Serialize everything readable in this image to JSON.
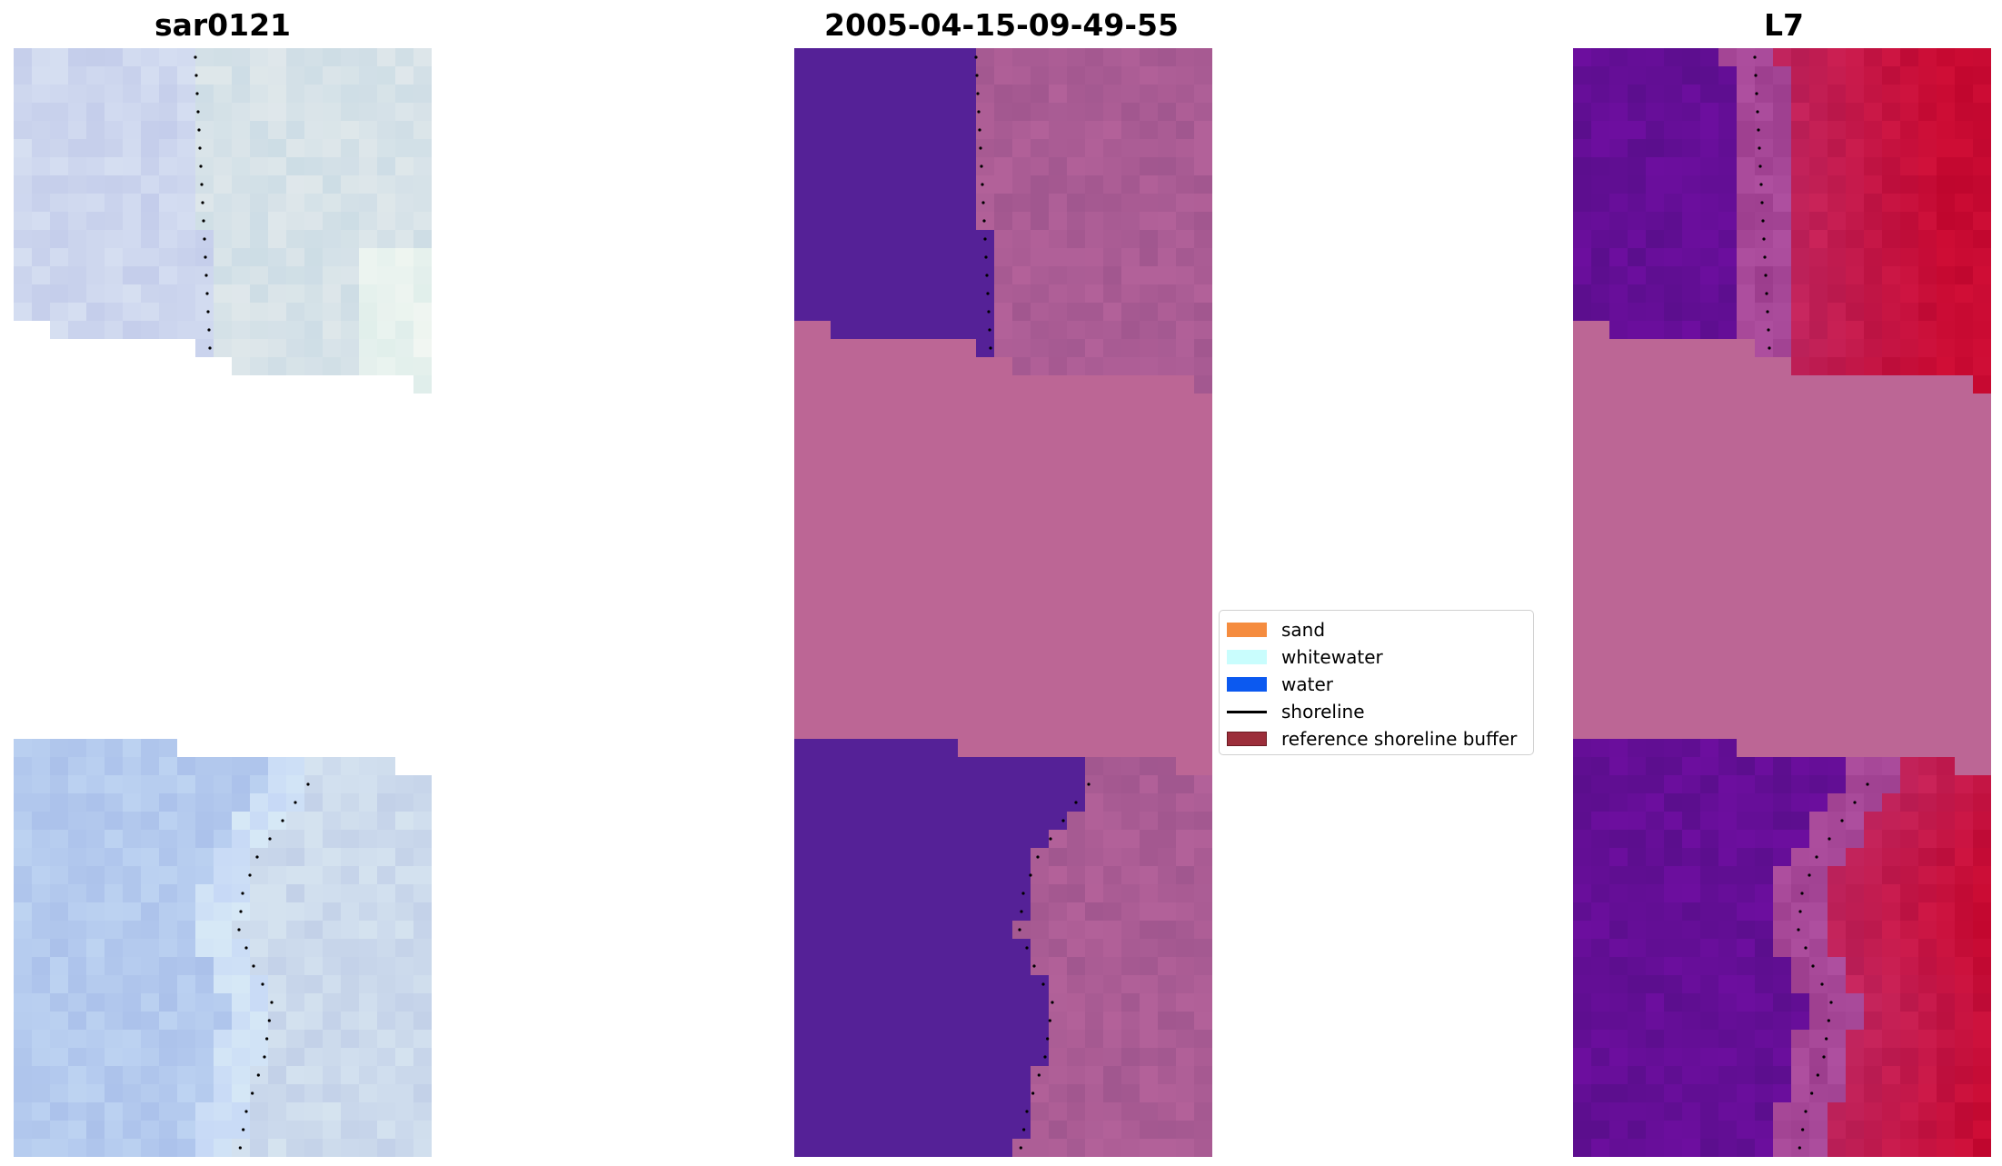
{
  "panels": [
    {
      "title": "sar0121",
      "type": "rgb"
    },
    {
      "title": "2005-04-15-09-49-55",
      "type": "classified"
    },
    {
      "title": "L7",
      "type": "index"
    }
  ],
  "legend": {
    "items": [
      {
        "label": "sand",
        "color": "#f58c3f",
        "kind": "patch"
      },
      {
        "label": "whitewater",
        "color": "#c9fdfd",
        "kind": "patch"
      },
      {
        "label": "water",
        "color": "#0b59f0",
        "kind": "patch"
      },
      {
        "label": "shoreline",
        "color": "#000000",
        "kind": "line"
      },
      {
        "label": "reference shoreline buffer",
        "color": "#9c2e3a",
        "edge": "#6b1a22",
        "kind": "patch"
      }
    ]
  },
  "colors": {
    "nodata_pink": "#bc6695",
    "classified_water": "#552197",
    "rgb_base": "#cfdcef",
    "index_water": "#650f99",
    "index_land": "#c2184f"
  }
}
